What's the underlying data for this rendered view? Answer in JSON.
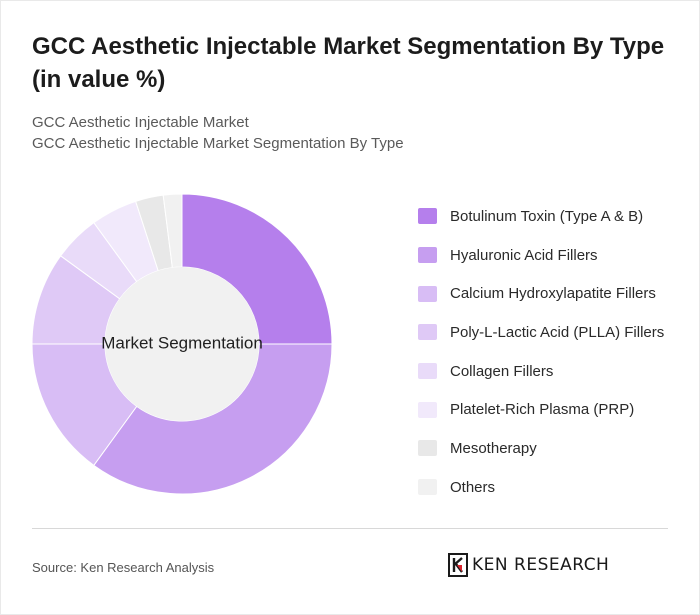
{
  "title": "GCC Aesthetic Injectable Market Segmentation By Type (in value %)",
  "subtitle_1": "GCC Aesthetic Injectable Market",
  "subtitle_2": "GCC Aesthetic Injectable Market Segmentation By Type",
  "source": "Source: Ken Research Analysis",
  "brand": "KEN RESEARCH",
  "chart_data": {
    "type": "pie",
    "variant": "donut",
    "center_label": "Market Segmentation",
    "legend_position": "right",
    "categories": [
      "Botulinum Toxin (Type A & B)",
      "Hyaluronic Acid Fillers",
      "Calcium Hydroxylapatite Fillers",
      "Poly-L-Lactic Acid (PLLA) Fillers",
      "Collagen Fillers",
      "Platelet-Rich Plasma (PRP)",
      "Mesotherapy",
      "Others"
    ],
    "values": [
      25,
      35,
      15,
      10,
      5,
      5,
      3,
      2
    ],
    "colors": [
      "#b57fec",
      "#c69ef0",
      "#d8bdf5",
      "#dfc9f6",
      "#e9dbf9",
      "#f1e9fb",
      "#e8e8e8",
      "#f1f1f1"
    ],
    "center_color": "#f1f1f1"
  }
}
